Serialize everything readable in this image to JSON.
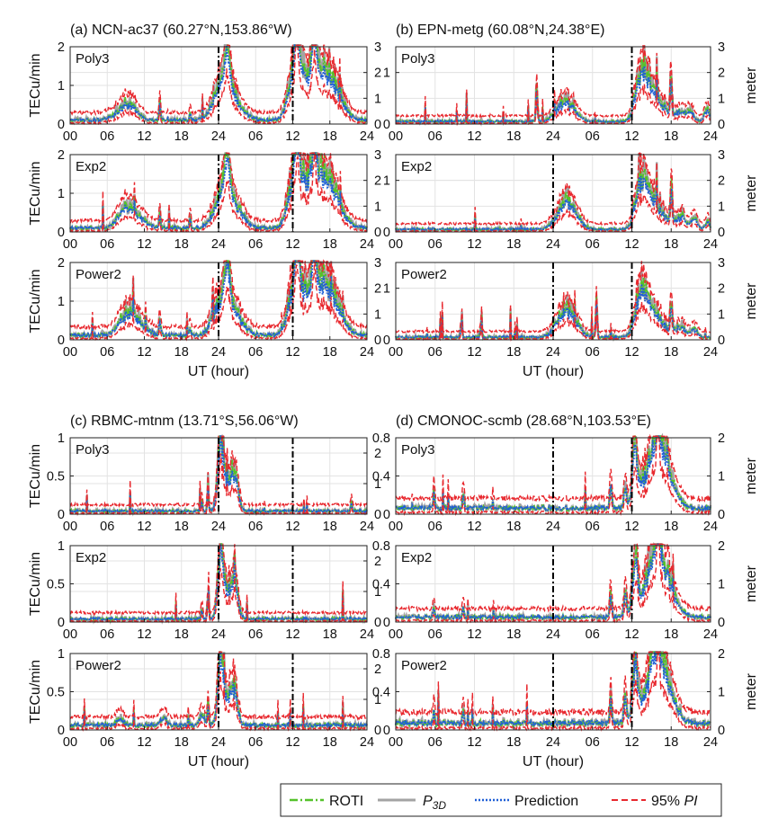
{
  "colors": {
    "roti": "#55c22a",
    "p3d": "#a3a3a3",
    "prediction": "#1f5fd6",
    "pi": "#e8282e",
    "grid": "#e3e3e3",
    "axis": "#222222"
  },
  "legend": {
    "roti": "ROTI",
    "p3d_main": "P",
    "p3d_sub": "3D",
    "prediction": "Prediction",
    "pi_prefix": "95% ",
    "pi_italic": "PI"
  },
  "chart_data": [
    {
      "type": "line",
      "id": "a",
      "title": "(a) NCN-ac37 (60.27°N,153.86°W)",
      "ylabel": "TECu/min",
      "y2label": "",
      "xlabel": "",
      "ylim": [
        0,
        2
      ],
      "yticks": [
        "0",
        "1",
        "2"
      ],
      "y2lim": [
        0,
        3
      ],
      "y2ticks": [
        "0",
        "1",
        "2",
        "3"
      ],
      "xticks": [
        "00",
        "06",
        "12",
        "18",
        "24",
        "06",
        "12",
        "18",
        "24"
      ],
      "model": "Poly3",
      "day_boundaries_hours": [
        24,
        36
      ],
      "pattern": {
        "base": 0.1,
        "spikes": [
          [
            8.9,
            0.35,
            1.5
          ],
          [
            10,
            0.15,
            1
          ],
          [
            14.5,
            0.4,
            0.12
          ],
          [
            19.4,
            0.2,
            0.12
          ],
          [
            24.5,
            0.8,
            1.3
          ],
          [
            25.4,
            1.1,
            0.4
          ],
          [
            26.5,
            0.5,
            1.5
          ],
          [
            36.3,
            1.2,
            1
          ],
          [
            38.5,
            1.0,
            1.5
          ],
          [
            41,
            1.0,
            1.5
          ],
          [
            43,
            0.5,
            1.5
          ],
          [
            39.5,
            1.5,
            0.3
          ],
          [
            36.7,
            1.5,
            0.3
          ]
        ]
      },
      "series": [
        {
          "name": "ROTI"
        },
        {
          "name": "P3D"
        },
        {
          "name": "Prediction"
        },
        {
          "name": "95% PI"
        }
      ]
    },
    {
      "type": "line",
      "id": "b",
      "title": "(b) EPN-metg (60.08°N,24.38°E)",
      "ylabel": "",
      "y2label": "meter",
      "xlabel": "",
      "ylim": [
        0,
        1.5
      ],
      "yticks": [
        "0",
        "1"
      ],
      "y2lim": [
        0,
        3
      ],
      "y2ticks": [
        "0",
        "1",
        "2",
        "3"
      ],
      "xticks": [
        "00",
        "06",
        "12",
        "18",
        "24",
        "06",
        "12",
        "18",
        "24"
      ],
      "model": "Poly3",
      "day_boundaries_hours": [
        24,
        36
      ],
      "pattern": {
        "base": 0.05,
        "spikes": [
          [
            21.5,
            0.75,
            0.12
          ],
          [
            25,
            0.2,
            1
          ],
          [
            26.5,
            0.3,
            1.2
          ],
          [
            37.3,
            0.7,
            0.8
          ],
          [
            38.2,
            0.5,
            1
          ],
          [
            40,
            0.4,
            1.2
          ],
          [
            42,
            0.8,
            0.15
          ],
          [
            43.5,
            0.2,
            0.8
          ],
          [
            45,
            0.15,
            0.5
          ],
          [
            47.5,
            0.25,
            0.4
          ]
        ]
      },
      "series": [
        {
          "name": "ROTI"
        },
        {
          "name": "P3D"
        },
        {
          "name": "Prediction"
        },
        {
          "name": "95% PI"
        }
      ]
    },
    {
      "type": "line",
      "id": "a2",
      "title": "",
      "ylabel": "TECu/min",
      "y2label": "",
      "xlabel": "",
      "ylim": [
        0,
        2
      ],
      "yticks": [
        "0",
        "1",
        "2"
      ],
      "y2lim": [
        0,
        3
      ],
      "y2ticks": [
        "0",
        "1",
        "2",
        "3"
      ],
      "xticks": [
        "00",
        "06",
        "12",
        "18",
        "24",
        "06",
        "12",
        "18",
        "24"
      ],
      "model": "Exp2",
      "day_boundaries_hours": [
        24,
        36
      ],
      "pattern": {
        "base": 0.1,
        "spikes": [
          [
            8.9,
            0.4,
            1.2
          ],
          [
            10.5,
            0.3,
            1.5
          ],
          [
            14.5,
            0.4,
            0.12
          ],
          [
            19.4,
            0.25,
            0.12
          ],
          [
            24.5,
            0.8,
            1.3
          ],
          [
            25.4,
            1.1,
            0.4
          ],
          [
            26.5,
            0.5,
            1.5
          ],
          [
            36.3,
            1.2,
            1
          ],
          [
            38.5,
            1.0,
            1.5
          ],
          [
            41,
            1.0,
            1.5
          ],
          [
            43,
            0.5,
            1.5
          ],
          [
            39.5,
            1.5,
            0.3
          ],
          [
            36.7,
            1.5,
            0.3
          ]
        ]
      },
      "series": [
        {
          "name": "ROTI"
        },
        {
          "name": "P3D"
        },
        {
          "name": "Prediction"
        },
        {
          "name": "95% PI"
        }
      ]
    },
    {
      "type": "line",
      "id": "b2",
      "title": "",
      "ylabel": "",
      "y2label": "meter",
      "xlabel": "",
      "ylim": [
        0,
        1.5
      ],
      "yticks": [
        "0",
        "1"
      ],
      "y2lim": [
        0,
        3
      ],
      "y2ticks": [
        "0",
        "1",
        "2",
        "3"
      ],
      "xticks": [
        "00",
        "06",
        "12",
        "18",
        "24",
        "06",
        "12",
        "18",
        "24"
      ],
      "model": "Exp2",
      "day_boundaries_hours": [
        24,
        36
      ],
      "pattern": {
        "base": 0.05,
        "spikes": [
          [
            25.5,
            0.35,
            1.2
          ],
          [
            26.8,
            0.3,
            1.2
          ],
          [
            37.3,
            0.7,
            0.8
          ],
          [
            38.2,
            0.5,
            1
          ],
          [
            40,
            0.4,
            1.2
          ],
          [
            42,
            0.8,
            0.15
          ],
          [
            43.5,
            0.25,
            0.8
          ],
          [
            45.5,
            0.2,
            0.5
          ],
          [
            47.5,
            0.15,
            0.4
          ]
        ]
      },
      "series": [
        {
          "name": "ROTI"
        },
        {
          "name": "P3D"
        },
        {
          "name": "Prediction"
        },
        {
          "name": "95% PI"
        }
      ]
    },
    {
      "type": "line",
      "id": "a3",
      "title": "",
      "ylabel": "TECu/min",
      "y2label": "",
      "xlabel": "UT (hour)",
      "ylim": [
        0,
        2
      ],
      "yticks": [
        "0",
        "1",
        "2"
      ],
      "y2lim": [
        0,
        3
      ],
      "y2ticks": [
        "0",
        "1",
        "2",
        "3"
      ],
      "xticks": [
        "00",
        "06",
        "12",
        "18",
        "24",
        "06",
        "12",
        "18",
        "24"
      ],
      "model": "Power2",
      "day_boundaries_hours": [
        24,
        36
      ],
      "pattern": {
        "base": 0.12,
        "spikes": [
          [
            8.9,
            0.35,
            1.2
          ],
          [
            10.5,
            0.35,
            1.5
          ],
          [
            14.5,
            0.5,
            0.12
          ],
          [
            19.4,
            0.25,
            0.12
          ],
          [
            24.5,
            0.8,
            1.3
          ],
          [
            25.4,
            1.1,
            0.4
          ],
          [
            26.5,
            0.5,
            1.5
          ],
          [
            36.3,
            1.2,
            1
          ],
          [
            38.5,
            1.0,
            1.5
          ],
          [
            41,
            1.0,
            1.5
          ],
          [
            43,
            0.5,
            1.5
          ],
          [
            39.5,
            1.5,
            0.3
          ],
          [
            36.7,
            1.5,
            0.3
          ]
        ]
      },
      "series": [
        {
          "name": "ROTI"
        },
        {
          "name": "P3D"
        },
        {
          "name": "Prediction"
        },
        {
          "name": "95% PI"
        }
      ]
    },
    {
      "type": "line",
      "id": "b3",
      "title": "",
      "ylabel": "",
      "y2label": "meter",
      "xlabel": "UT (hour)",
      "ylim": [
        0,
        1.5
      ],
      "yticks": [
        "0",
        "1"
      ],
      "y2lim": [
        0,
        3
      ],
      "y2ticks": [
        "0",
        "1",
        "2",
        "3"
      ],
      "xticks": [
        "00",
        "06",
        "12",
        "18",
        "24",
        "06",
        "12",
        "18",
        "24"
      ],
      "model": "Power2",
      "day_boundaries_hours": [
        24,
        36
      ],
      "pattern": {
        "base": 0.05,
        "spikes": [
          [
            10,
            0.25,
            0.12
          ],
          [
            13,
            0.2,
            0.12
          ],
          [
            25.5,
            0.35,
            1.2
          ],
          [
            26.8,
            0.3,
            1.2
          ],
          [
            30.6,
            0.6,
            0.12
          ],
          [
            37.3,
            0.65,
            0.8
          ],
          [
            38.2,
            0.5,
            1
          ],
          [
            40,
            0.35,
            1.2
          ],
          [
            42,
            0.7,
            0.15
          ],
          [
            43.5,
            0.2,
            0.8
          ],
          [
            45.5,
            0.15,
            0.5
          ]
        ]
      },
      "series": [
        {
          "name": "ROTI"
        },
        {
          "name": "P3D"
        },
        {
          "name": "Prediction"
        },
        {
          "name": "95% PI"
        }
      ]
    },
    {
      "type": "line",
      "id": "c",
      "title": "(c) RBMC-mtnm (13.71°S,56.06°W)",
      "ylabel": "TECu/min",
      "y2label": "",
      "xlabel": "",
      "ylim": [
        0,
        1
      ],
      "yticks": [
        "0",
        "0.5",
        "1"
      ],
      "y2lim": [
        0,
        2.5
      ],
      "y2ticks": [
        "0",
        "1",
        "2"
      ],
      "xticks": [
        "00",
        "06",
        "12",
        "18",
        "24",
        "06",
        "12",
        "18",
        "24"
      ],
      "model": "Poly3",
      "day_boundaries_hours": [
        24,
        36
      ],
      "pattern": {
        "base": 0.04,
        "spikes": [
          [
            22.3,
            0.3,
            0.12
          ],
          [
            24.3,
            0.8,
            0.4
          ],
          [
            25,
            0.35,
            0.8
          ],
          [
            26.5,
            0.5,
            0.6
          ],
          [
            21.3,
            0.12,
            0.12
          ],
          [
            45.5,
            0.12,
            0.12
          ]
        ]
      },
      "series": [
        {
          "name": "ROTI"
        },
        {
          "name": "P3D"
        },
        {
          "name": "Prediction"
        },
        {
          "name": "95% PI"
        }
      ]
    },
    {
      "type": "line",
      "id": "d",
      "title": "(d) CMONOC-scmb (28.68°N,103.53°E)",
      "ylabel": "",
      "y2label": "meter",
      "xlabel": "",
      "ylim": [
        0,
        0.8
      ],
      "yticks": [
        "0",
        "0.4",
        "0.8"
      ],
      "y2lim": [
        0,
        2
      ],
      "y2ticks": [
        "0",
        "1",
        "2"
      ],
      "xticks": [
        "00",
        "06",
        "12",
        "18",
        "24",
        "06",
        "12",
        "18",
        "24"
      ],
      "model": "Poly3",
      "day_boundaries_hours": [
        24,
        36
      ],
      "pattern": {
        "base": 0.06,
        "spikes": [
          [
            5.8,
            0.2,
            0.12
          ],
          [
            10.3,
            0.15,
            0.12
          ],
          [
            32.8,
            0.3,
            0.15
          ],
          [
            35,
            0.25,
            0.2
          ],
          [
            36.5,
            0.6,
            0.4
          ],
          [
            39.5,
            0.55,
            1.5
          ],
          [
            41,
            0.3,
            1.5
          ],
          [
            40,
            0.8,
            0.2
          ]
        ]
      },
      "series": [
        {
          "name": "ROTI"
        },
        {
          "name": "P3D"
        },
        {
          "name": "Prediction"
        },
        {
          "name": "95% PI"
        }
      ]
    },
    {
      "type": "line",
      "id": "c2",
      "title": "",
      "ylabel": "TECu/min",
      "y2label": "",
      "xlabel": "",
      "ylim": [
        0,
        1
      ],
      "yticks": [
        "0",
        "0.5",
        "1"
      ],
      "y2lim": [
        0,
        2.5
      ],
      "y2ticks": [
        "0",
        "1",
        "2"
      ],
      "xticks": [
        "00",
        "06",
        "12",
        "18",
        "24",
        "06",
        "12",
        "18",
        "24"
      ],
      "model": "Exp2",
      "day_boundaries_hours": [
        24,
        36
      ],
      "pattern": {
        "base": 0.04,
        "spikes": [
          [
            22.3,
            0.35,
            0.12
          ],
          [
            24.3,
            0.8,
            0.4
          ],
          [
            25,
            0.35,
            0.8
          ],
          [
            26.5,
            0.5,
            0.6
          ],
          [
            21.3,
            0.15,
            0.12
          ]
        ]
      },
      "series": [
        {
          "name": "ROTI"
        },
        {
          "name": "P3D"
        },
        {
          "name": "Prediction"
        },
        {
          "name": "95% PI"
        }
      ]
    },
    {
      "type": "line",
      "id": "d2",
      "title": "",
      "ylabel": "",
      "y2label": "meter",
      "xlabel": "",
      "ylim": [
        0,
        0.8
      ],
      "yticks": [
        "0",
        "0.4",
        "0.8"
      ],
      "y2lim": [
        0,
        2
      ],
      "y2ticks": [
        "0",
        "1",
        "2"
      ],
      "xticks": [
        "00",
        "06",
        "12",
        "18",
        "24",
        "06",
        "12",
        "18",
        "24"
      ],
      "model": "Exp2",
      "day_boundaries_hours": [
        24,
        36
      ],
      "pattern": {
        "base": 0.05,
        "spikes": [
          [
            5.8,
            0.15,
            0.12
          ],
          [
            10.3,
            0.12,
            0.12
          ],
          [
            32.8,
            0.25,
            0.15
          ],
          [
            35,
            0.25,
            0.2
          ],
          [
            36.5,
            0.6,
            0.4
          ],
          [
            39.5,
            0.55,
            1.5
          ],
          [
            41,
            0.3,
            1.5
          ],
          [
            40,
            0.8,
            0.2
          ]
        ]
      },
      "series": [
        {
          "name": "ROTI"
        },
        {
          "name": "P3D"
        },
        {
          "name": "Prediction"
        },
        {
          "name": "95% PI"
        }
      ]
    },
    {
      "type": "line",
      "id": "c3",
      "title": "",
      "ylabel": "TECu/min",
      "y2label": "",
      "xlabel": "UT (hour)",
      "ylim": [
        0,
        1
      ],
      "yticks": [
        "0",
        "0.5",
        "1"
      ],
      "y2lim": [
        0,
        2.5
      ],
      "y2ticks": [
        "0",
        "1",
        "2"
      ],
      "xticks": [
        "00",
        "06",
        "12",
        "18",
        "24",
        "06",
        "12",
        "18",
        "24"
      ],
      "model": "Power2",
      "day_boundaries_hours": [
        24,
        36
      ],
      "pattern": {
        "base": 0.06,
        "spikes": [
          [
            22.3,
            0.25,
            0.12
          ],
          [
            24.3,
            0.8,
            0.4
          ],
          [
            25,
            0.35,
            0.8
          ],
          [
            26.5,
            0.45,
            0.6
          ],
          [
            21.3,
            0.15,
            0.4
          ],
          [
            8,
            0.1,
            0.5
          ],
          [
            15,
            0.1,
            0.5
          ]
        ]
      },
      "series": [
        {
          "name": "ROTI"
        },
        {
          "name": "P3D"
        },
        {
          "name": "Prediction"
        },
        {
          "name": "95% PI"
        }
      ]
    },
    {
      "type": "line",
      "id": "d3",
      "title": "",
      "ylabel": "",
      "y2label": "meter",
      "xlabel": "UT (hour)",
      "ylim": [
        0,
        0.8
      ],
      "yticks": [
        "0",
        "0.4",
        "0.8"
      ],
      "y2lim": [
        0,
        2
      ],
      "y2ticks": [
        "0",
        "1",
        "2"
      ],
      "xticks": [
        "00",
        "06",
        "12",
        "18",
        "24",
        "06",
        "12",
        "18",
        "24"
      ],
      "model": "Power2",
      "day_boundaries_hours": [
        24,
        36
      ],
      "pattern": {
        "base": 0.07,
        "spikes": [
          [
            5.8,
            0.15,
            0.12
          ],
          [
            10.3,
            0.12,
            0.12
          ],
          [
            32.8,
            0.25,
            0.15
          ],
          [
            35,
            0.3,
            0.2
          ],
          [
            36.5,
            0.6,
            0.4
          ],
          [
            39.5,
            0.55,
            1.5
          ],
          [
            41,
            0.3,
            1.5
          ],
          [
            40,
            0.8,
            0.2
          ]
        ]
      },
      "series": [
        {
          "name": "ROTI"
        },
        {
          "name": "P3D"
        },
        {
          "name": "Prediction"
        },
        {
          "name": "95% PI"
        }
      ]
    }
  ]
}
